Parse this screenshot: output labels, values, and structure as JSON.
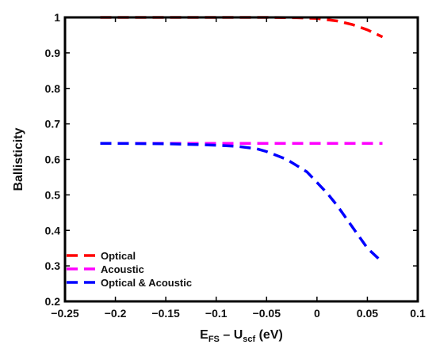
{
  "chart_data": {
    "type": "line",
    "title": "",
    "xlabel": {
      "main": "E",
      "main_sub": "FS",
      "dash": " – ",
      "second": "U",
      "second_sub": "scf",
      "unit": " (eV)"
    },
    "ylabel": "Ballisticity",
    "xlim": [
      -0.25,
      0.1
    ],
    "ylim": [
      0.2,
      1.0
    ],
    "xticks": [
      -0.25,
      -0.2,
      -0.15,
      -0.1,
      -0.05,
      0,
      0.05,
      0.1
    ],
    "xtick_labels": [
      "−0.25",
      "−0.2",
      "−0.15",
      "−0.1",
      "−0.05",
      "0",
      "0.05",
      "0.1"
    ],
    "yticks": [
      0.2,
      0.3,
      0.4,
      0.5,
      0.6,
      0.7,
      0.8,
      0.9,
      1.0
    ],
    "ytick_labels": [
      "0.2",
      "0.3",
      "0.4",
      "0.5",
      "0.6",
      "0.7",
      "0.8",
      "0.9",
      "1"
    ],
    "grid": false,
    "legend_position": "bottom-left",
    "series": [
      {
        "name": "Optical",
        "color": "#ff0000",
        "linestyle": "dashed",
        "x": [
          -0.215,
          -0.2,
          -0.15,
          -0.1,
          -0.05,
          -0.02,
          0,
          0.02,
          0.035,
          0.05,
          0.065
        ],
        "y": [
          1.0,
          1.0,
          1.0,
          1.0,
          1.0,
          0.999,
          0.997,
          0.99,
          0.98,
          0.965,
          0.945
        ]
      },
      {
        "name": "Acoustic",
        "color": "#ff00ff",
        "linestyle": "dashed",
        "x": [
          -0.215,
          -0.1,
          0,
          0.065
        ],
        "y": [
          0.645,
          0.645,
          0.645,
          0.645
        ]
      },
      {
        "name": "Optical & Acoustic",
        "color": "#0000ff",
        "linestyle": "dashed",
        "x": [
          -0.215,
          -0.2,
          -0.15,
          -0.12,
          -0.1,
          -0.08,
          -0.06,
          -0.05,
          -0.03,
          -0.01,
          0,
          0.01,
          0.02,
          0.03,
          0.04,
          0.05,
          0.065
        ],
        "y": [
          0.645,
          0.645,
          0.644,
          0.642,
          0.64,
          0.637,
          0.63,
          0.622,
          0.6,
          0.565,
          0.535,
          0.505,
          0.47,
          0.43,
          0.39,
          0.35,
          0.31
        ]
      }
    ]
  }
}
